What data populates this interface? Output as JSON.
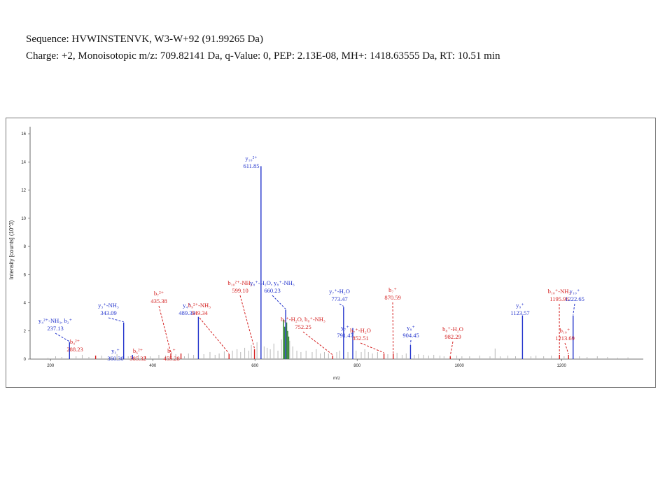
{
  "header": {
    "line1": "Sequence: HVWINSTENVK, W3-W+92 (91.99265 Da)",
    "line2": "Charge: +2, Monoisotopic m/z: 709.82141 Da, q-Value: 0, PEP: 2.13E-08, MH+: 1418.63555 Da, RT: 10.51 min"
  },
  "colors": {
    "b_ion": "#d42020",
    "y_ion": "#2233cc",
    "unassigned": "#b8b8b8",
    "precursor": "#3a8a3a"
  },
  "chart_data": {
    "type": "bar",
    "xlabel": "m/z",
    "ylabel": "Intensity [counts] (10^3)",
    "xlim": [
      160,
      1360
    ],
    "ylim": [
      0,
      16.5
    ],
    "xticks": [
      "200",
      "400",
      "600",
      "800",
      "1000",
      "1200"
    ],
    "yticks": [
      "0",
      "2",
      "4",
      "6",
      "8",
      "10",
      "12",
      "14",
      "16"
    ],
    "annotated_peaks": [
      {
        "mz": 237.13,
        "intensity": 1.2,
        "series": "y",
        "label": [
          "y₄²⁺-NH₃, b₂⁺",
          "237.13"
        ]
      },
      {
        "mz": 288.23,
        "intensity": 0.25,
        "series": "b",
        "label": [
          "b₄²⁺",
          "288.23"
        ]
      },
      {
        "mz": 343.09,
        "intensity": 2.6,
        "series": "y",
        "label": [
          "y₃⁺-NH₃",
          "343.09"
        ]
      },
      {
        "mz": 360.3,
        "intensity": 0.3,
        "series": "y",
        "label": [
          "y₃⁺",
          "360.30"
        ]
      },
      {
        "mz": 385.32,
        "intensity": 0.2,
        "series": "b",
        "label": [
          "b₆²⁺",
          "385.32"
        ]
      },
      {
        "mz": 435.38,
        "intensity": 0.4,
        "series": "b",
        "label": [
          "b₇²⁺",
          "435.38"
        ]
      },
      {
        "mz": 455.28,
        "intensity": 0.4,
        "series": "b",
        "label": [
          "b₃⁺",
          "455.28"
        ]
      },
      {
        "mz": 489.34,
        "intensity": 3.0,
        "series": "y",
        "label": [
          "y₄⁺",
          "489.34"
        ]
      },
      {
        "mz": 549.34,
        "intensity": 0.35,
        "series": "b",
        "label": [
          "b₉²⁺-NH₃",
          "549.34"
        ]
      },
      {
        "mz": 599.1,
        "intensity": 0.7,
        "series": "b",
        "label": [
          "b₁₀²⁺-NH₃",
          "599.10"
        ]
      },
      {
        "mz": 611.85,
        "intensity": 13.7,
        "series": "y",
        "label": [
          "y₁₀²⁺",
          "611.85"
        ]
      },
      {
        "mz": 660.23,
        "intensity": 3.5,
        "series": "y",
        "label": [
          "y₈⁺-H₂O, y₈⁺-NH₃",
          "660.23"
        ]
      },
      {
        "mz": 752.25,
        "intensity": 0.25,
        "series": "b",
        "label": [
          "b₈⁺-H₂O, b₈⁺-NH₃",
          "752.25"
        ]
      },
      {
        "mz": 773.47,
        "intensity": 3.7,
        "series": "y",
        "label": [
          "y₇⁺-H₂O",
          "773.47"
        ]
      },
      {
        "mz": 791.47,
        "intensity": 2.2,
        "series": "y",
        "label": [
          "y₇⁺",
          "791.47"
        ]
      },
      {
        "mz": 852.51,
        "intensity": 0.4,
        "series": "b",
        "label": [
          "b₇⁺-H₂O",
          "852.51"
        ]
      },
      {
        "mz": 870.59,
        "intensity": 0.4,
        "series": "b",
        "label": [
          "b₇⁺",
          "870.59"
        ]
      },
      {
        "mz": 904.45,
        "intensity": 1.0,
        "series": "y",
        "label": [
          "y₈⁺",
          "904.45"
        ]
      },
      {
        "mz": 982.29,
        "intensity": 0.2,
        "series": "b",
        "label": [
          "b₈⁺-H₂O",
          "982.29"
        ]
      },
      {
        "mz": 1123.57,
        "intensity": 3.1,
        "series": "y",
        "label": [
          "y₉⁺",
          "1123.57"
        ]
      },
      {
        "mz": 1195.96,
        "intensity": 0.3,
        "series": "b",
        "label": [
          "b₁₀⁺-NH₃",
          "1195.96"
        ]
      },
      {
        "mz": 1213.69,
        "intensity": 0.3,
        "series": "b",
        "label": [
          "b₁₀⁺",
          "1213.69"
        ]
      },
      {
        "mz": 1222.65,
        "intensity": 3.1,
        "series": "y",
        "label": [
          "y₁₀⁺",
          "1222.65"
        ]
      }
    ],
    "unassigned_peaks": [
      [
        195,
        0.1
      ],
      [
        210,
        0.2
      ],
      [
        222,
        0.15
      ],
      [
        250,
        0.2
      ],
      [
        262,
        0.3
      ],
      [
        275,
        0.15
      ],
      [
        300,
        0.25
      ],
      [
        318,
        0.2
      ],
      [
        330,
        0.35
      ],
      [
        352,
        0.2
      ],
      [
        372,
        0.3
      ],
      [
        395,
        0.2
      ],
      [
        412,
        0.3
      ],
      [
        425,
        0.25
      ],
      [
        445,
        0.35
      ],
      [
        462,
        0.2
      ],
      [
        470,
        0.4
      ],
      [
        480,
        0.3
      ],
      [
        500,
        0.35
      ],
      [
        512,
        0.5
      ],
      [
        522,
        0.3
      ],
      [
        530,
        0.4
      ],
      [
        540,
        0.55
      ],
      [
        556,
        0.6
      ],
      [
        565,
        0.7
      ],
      [
        572,
        0.5
      ],
      [
        580,
        0.8
      ],
      [
        588,
        0.6
      ],
      [
        593,
        1.0
      ],
      [
        604,
        1.2
      ],
      [
        618,
        0.9
      ],
      [
        624,
        0.8
      ],
      [
        630,
        0.7
      ],
      [
        637,
        1.1
      ],
      [
        645,
        0.6
      ],
      [
        652,
        1.4
      ],
      [
        668,
        1.3
      ],
      [
        674,
        0.9
      ],
      [
        682,
        0.6
      ],
      [
        690,
        0.5
      ],
      [
        700,
        0.6
      ],
      [
        712,
        0.5
      ],
      [
        720,
        0.7
      ],
      [
        728,
        0.4
      ],
      [
        736,
        0.5
      ],
      [
        744,
        0.4
      ],
      [
        760,
        0.5
      ],
      [
        766,
        0.6
      ],
      [
        782,
        0.5
      ],
      [
        798,
        0.6
      ],
      [
        808,
        0.5
      ],
      [
        815,
        0.7
      ],
      [
        822,
        0.5
      ],
      [
        830,
        0.4
      ],
      [
        840,
        0.5
      ],
      [
        860,
        0.35
      ],
      [
        878,
        0.45
      ],
      [
        888,
        0.3
      ],
      [
        896,
        0.4
      ],
      [
        912,
        0.3
      ],
      [
        920,
        0.35
      ],
      [
        930,
        0.3
      ],
      [
        940,
        0.25
      ],
      [
        950,
        0.3
      ],
      [
        962,
        0.25
      ],
      [
        970,
        0.2
      ],
      [
        995,
        0.25
      ],
      [
        1005,
        0.2
      ],
      [
        1020,
        0.2
      ],
      [
        1040,
        0.25
      ],
      [
        1060,
        0.2
      ],
      [
        1070,
        0.75
      ],
      [
        1080,
        0.2
      ],
      [
        1095,
        0.25
      ],
      [
        1110,
        0.2
      ],
      [
        1140,
        0.2
      ],
      [
        1150,
        0.25
      ],
      [
        1165,
        0.2
      ],
      [
        1180,
        0.25
      ],
      [
        1205,
        0.2
      ],
      [
        1235,
        0.2
      ],
      [
        1250,
        0.15
      ],
      [
        1270,
        0.2
      ],
      [
        1290,
        0.15
      ],
      [
        1310,
        0.1
      ],
      [
        1330,
        0.12
      ]
    ],
    "precursor_cluster": [
      [
        656,
        2.8
      ],
      [
        658,
        2.3
      ],
      [
        662,
        2.6
      ],
      [
        664,
        2.0
      ],
      [
        666,
        1.6
      ]
    ]
  }
}
